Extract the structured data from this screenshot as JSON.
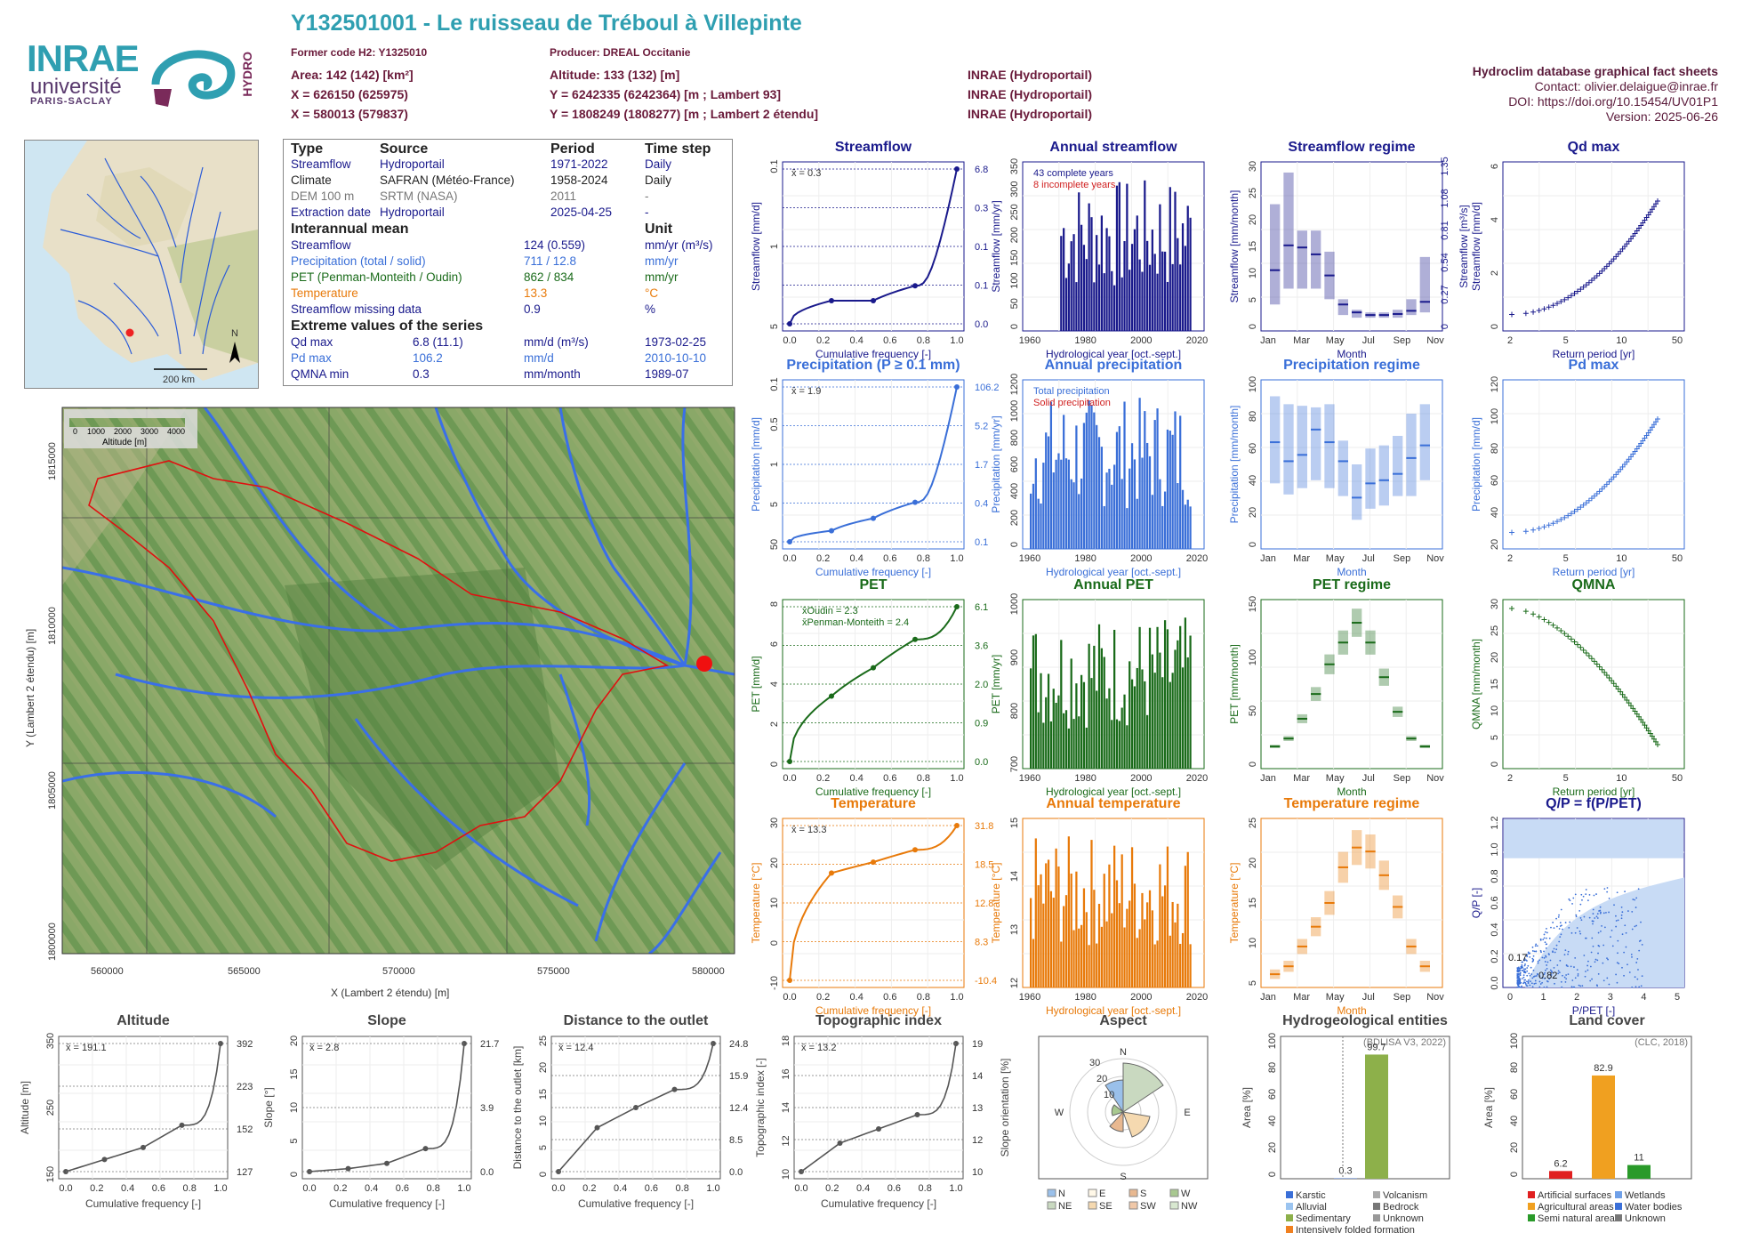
{
  "header": {
    "title": "Y132501001 - Le ruisseau de Tréboul à Villepinte",
    "former_code": "Former code H2: Y1325010",
    "producer": "Producer: DREAL Occitanie",
    "area": "Area: 142 (142) [km²]",
    "altitude": "Altitude: 133 (132) [m]",
    "x93": "X = 626150 (625975)",
    "y93": "Y = 6242335 (6242364) [m ; Lambert 93]",
    "x2": "X = 580013 (579837)",
    "y2": "Y = 1808249 (1808277) [m ; Lambert 2 étendu]",
    "src1": "INRAE (Hydroportail)",
    "src2": "INRAE (Hydroportail)",
    "src3": "INRAE (Hydroportail)",
    "right1": "Hydroclim database graphical fact sheets",
    "right2": "Contact: olivier.delaigue@inrae.fr",
    "right3": "DOI: https://doi.org/10.15454/UV01P1",
    "right4": "Version: 2025-06-26",
    "logo1": "INRAE",
    "logo2": "université",
    "logo3": "PARIS-SACLAY",
    "logo4": "HYDRO"
  },
  "overview_map": {
    "scale_label": "200 km",
    "north": "N"
  },
  "info": {
    "h_type": "Type",
    "h_source": "Source",
    "h_period": "Period",
    "h_step": "Time step",
    "rows": [
      [
        "Streamflow",
        "Hydroportail",
        "1971-2022",
        "Daily"
      ],
      [
        "Climate",
        "SAFRAN (Météo-France)",
        "1958-2024",
        "Daily"
      ],
      [
        "DEM 100 m",
        "SRTM (NASA)",
        "2011",
        "-"
      ],
      [
        "Extraction date",
        "Hydroportail",
        "2025-04-25",
        "-"
      ]
    ],
    "h_mean": "Interannual mean",
    "h_unit": "Unit",
    "means": [
      [
        "Streamflow",
        "124 (0.559)",
        "mm/yr (m³/s)"
      ],
      [
        "Precipitation (total / solid)",
        "711 / 12.8",
        "mm/yr"
      ],
      [
        "PET (Penman-Monteith / Oudin)",
        "862 / 834",
        "mm/yr"
      ],
      [
        "Temperature",
        "13.3",
        "°C"
      ],
      [
        "Streamflow missing data",
        "0.9",
        "%"
      ]
    ],
    "h_extreme": "Extreme values of the series",
    "extremes": [
      [
        "Qd max",
        "6.8 (11.1)",
        "mm/d (m³/s)",
        "1973-02-25"
      ],
      [
        "Pd max",
        "106.2",
        "mm/d",
        "2010-10-10"
      ],
      [
        "QMNA min",
        "0.3",
        "mm/month",
        "1989-07"
      ]
    ]
  },
  "basin_map": {
    "legend_title": "Altitude [m]",
    "legend_ticks": [
      "0",
      "1000",
      "2000",
      "3000",
      "4000"
    ],
    "xlabel": "X (Lambert 2 étendu) [m]",
    "ylabel": "Y (Lambert 2 étendu) [m]",
    "xticks": [
      "560000",
      "565000",
      "570000",
      "575000",
      "580000"
    ],
    "yticks": [
      "1815000",
      "1810000",
      "1805000",
      "1800000"
    ]
  },
  "colors": {
    "blue": "#1a1a8c",
    "lightblue": "#3a6fd8",
    "green": "#1a6b1a",
    "orange": "#e87a0a",
    "teal": "#2f9fb1",
    "gray": "#555555"
  },
  "chart_data": [
    {
      "id": "streamflow",
      "type": "line",
      "title": "Streamflow",
      "xlabel": "Cumulative frequency [-]",
      "ylabel": "Streamflow [mm/d]",
      "mean": "x̄ = 0.3",
      "right_labels": [
        "6.8",
        "0.3",
        "0.1",
        "0.1",
        "0.0"
      ],
      "left_ticks": [
        "5",
        "1",
        "0.1"
      ],
      "x": [
        0,
        0.25,
        0.5,
        0.75,
        1
      ],
      "y": [
        0.0,
        0.1,
        0.1,
        0.3,
        6.8
      ]
    },
    {
      "id": "annual_streamflow",
      "type": "bar",
      "title": "Annual streamflow",
      "xlabel": "Hydrological year [oct.-sept.]",
      "ylabel": "Streamflow [mm/yr]",
      "yticks": [
        "0",
        "50",
        "100",
        "150",
        "200",
        "250",
        "300",
        "350"
      ],
      "xticks": [
        "1960",
        "1980",
        "2000",
        "2020"
      ],
      "legend": [
        "43 complete years",
        "8 incomplete years"
      ]
    },
    {
      "id": "streamflow_regime",
      "type": "bar",
      "title": "Streamflow regime",
      "xlabel": "Month",
      "ylabel": "Streamflow [mm/month]",
      "yticks": [
        "0",
        "5",
        "10",
        "15",
        "20",
        "25",
        "30"
      ],
      "right_ticks": [
        "0",
        "0.27",
        "0.54",
        "0.81",
        "1.08",
        "1.35"
      ],
      "right_label": "Streamflow [m³/s]",
      "xticks": [
        "Jan",
        "Mar",
        "May",
        "Jul",
        "Sep",
        "Nov"
      ],
      "median": [
        10.5,
        15.2,
        14.8,
        13.5,
        9.5,
        4,
        2.5,
        2,
        2,
        2.2,
        2.8,
        4.5
      ],
      "low": [
        4,
        7,
        7,
        7,
        5,
        2,
        1.5,
        1.5,
        1.5,
        1.5,
        2,
        2.5
      ],
      "high": [
        23,
        29,
        18,
        18,
        14,
        5,
        3,
        2.5,
        2.5,
        3,
        5,
        13
      ]
    },
    {
      "id": "qd_max",
      "type": "scatter",
      "title": "Qd max",
      "xlabel": "Return period [yr]",
      "ylabel": "Streamflow [mm/d]",
      "yticks": [
        "0",
        "2",
        "4",
        "6"
      ],
      "xticks": [
        "2",
        "5",
        "10",
        "50"
      ]
    },
    {
      "id": "precipitation",
      "type": "line",
      "title": "Precipitation (P ≥ 0.1 mm)",
      "xlabel": "Cumulative frequency [-]",
      "ylabel": "Precipitation [mm/d]",
      "mean": "x̄ = 1.9",
      "right_labels": [
        "106.2",
        "5.2",
        "1.7",
        "0.4",
        "0.1"
      ],
      "left_ticks": [
        "50",
        "5",
        "1",
        "0.5",
        "0.1"
      ],
      "x": [
        0,
        0.25,
        0.5,
        0.75,
        1
      ],
      "y": [
        0.1,
        0.4,
        1.7,
        5.2,
        106.2
      ]
    },
    {
      "id": "annual_precipitation",
      "type": "bar",
      "title": "Annual precipitation",
      "xlabel": "Hydrological year [oct.-sept.]",
      "ylabel": "Precipitation [mm/yr]",
      "yticks": [
        "0",
        "200",
        "400",
        "600",
        "800",
        "1000",
        "1200"
      ],
      "xticks": [
        "1960",
        "1980",
        "2000",
        "2020"
      ],
      "legend": [
        "Total precipitation",
        "Solid precipitation"
      ]
    },
    {
      "id": "precipitation_regime",
      "type": "bar",
      "title": "Precipitation regime",
      "xlabel": "Month",
      "ylabel": "Precipitation [mm/month]",
      "yticks": [
        "0",
        "20",
        "40",
        "60",
        "80",
        "100"
      ],
      "xticks": [
        "Jan",
        "Mar",
        "May",
        "Jul",
        "Sep",
        "Nov"
      ],
      "median": [
        64,
        52,
        56,
        72,
        64,
        52,
        29,
        38,
        40,
        44,
        54,
        62
      ],
      "low": [
        38,
        31,
        35,
        40,
        35,
        30,
        15,
        22,
        24,
        30,
        30,
        40
      ],
      "high": [
        93,
        88,
        87,
        86,
        88,
        65,
        50,
        60,
        62,
        68,
        82,
        88
      ]
    },
    {
      "id": "pd_max",
      "type": "scatter",
      "title": "Pd max",
      "xlabel": "Return period [yr]",
      "ylabel": "Precipitation [mm/d]",
      "yticks": [
        "20",
        "40",
        "60",
        "80",
        "100",
        "120"
      ],
      "xticks": [
        "2",
        "5",
        "10",
        "50"
      ]
    },
    {
      "id": "pet",
      "type": "line",
      "title": "PET",
      "xlabel": "Cumulative frequency [-]",
      "ylabel": "PET [mm/d]",
      "legend": [
        "x̄Oudin = 2.3",
        "x̄Penman-Monteith = 2.4"
      ],
      "right_labels": [
        "6.1",
        "3.6",
        "2.0",
        "0.9",
        "0.0"
      ],
      "left_ticks": [
        "0",
        "2",
        "4",
        "6",
        "8"
      ],
      "x": [
        0,
        0.25,
        0.5,
        0.75,
        1
      ],
      "y": [
        0.0,
        0.9,
        2.0,
        3.6,
        6.1
      ]
    },
    {
      "id": "annual_pet",
      "type": "bar",
      "title": "Annual PET",
      "xlabel": "Hydrological year [oct.-sept.]",
      "ylabel": "PET [mm/yr]",
      "yticks": [
        "700",
        "800",
        "900",
        "1000"
      ],
      "xticks": [
        "1960",
        "1980",
        "2000",
        "2020"
      ]
    },
    {
      "id": "pet_regime",
      "type": "bar",
      "title": "PET regime",
      "xlabel": "Month",
      "ylabel": "PET [mm/month]",
      "yticks": [
        "0",
        "50",
        "100",
        "150"
      ],
      "xticks": [
        "Jan",
        "Mar",
        "May",
        "Jul",
        "Sep",
        "Nov"
      ],
      "median": [
        17,
        25,
        45,
        70,
        100,
        122,
        142,
        122,
        87,
        52,
        25,
        17
      ]
    },
    {
      "id": "qmna",
      "type": "scatter",
      "title": "QMNA",
      "xlabel": "Return period [yr]",
      "ylabel": "QMNA [mm/month]",
      "yticks": [
        "0",
        "5",
        "10",
        "15",
        "20",
        "25",
        "30"
      ],
      "xticks": [
        "2",
        "5",
        "10",
        "50"
      ]
    },
    {
      "id": "temperature",
      "type": "line",
      "title": "Temperature",
      "xlabel": "Cumulative frequency [-]",
      "ylabel": "Temperature [°C]",
      "mean": "x̄ = 13.3",
      "right_labels": [
        "31.8",
        "18.5",
        "12.8",
        "8.3",
        "-10.4"
      ],
      "left_ticks": [
        "-10",
        "0",
        "10",
        "20",
        "30"
      ],
      "x": [
        0,
        0.25,
        0.5,
        0.75,
        1
      ],
      "y": [
        -10.4,
        8.3,
        12.8,
        18.5,
        31.8
      ]
    },
    {
      "id": "annual_temperature",
      "type": "bar",
      "title": "Annual temperature",
      "xlabel": "Hydrological year [oct.-sept.]",
      "ylabel": "Temperature [°C]",
      "yticks": [
        "12",
        "13",
        "14",
        "15"
      ],
      "xticks": [
        "1960",
        "1980",
        "2000",
        "2020"
      ]
    },
    {
      "id": "temperature_regime",
      "type": "bar",
      "title": "Temperature regime",
      "xlabel": "Month",
      "ylabel": "Temperature [°C]",
      "yticks": [
        "5",
        "10",
        "15",
        "20",
        "25"
      ],
      "xticks": [
        "Jan",
        "Mar",
        "May",
        "Jul",
        "Sep",
        "Nov"
      ],
      "median": [
        6,
        7,
        9.5,
        12,
        15,
        19.5,
        22,
        21.5,
        18.5,
        14.5,
        9.5,
        7
      ]
    },
    {
      "id": "qp",
      "type": "scatter",
      "title": "Q/P = f(P/PET)",
      "xlabel": "P/PET [-]",
      "ylabel": "Q/P [-]",
      "xticks": [
        "0",
        "1",
        "2",
        "3",
        "4",
        "5"
      ],
      "yticks": [
        "0.0",
        "0.2",
        "0.4",
        "0.6",
        "0.8",
        "1.0",
        "1.2"
      ],
      "annot": [
        "0.17",
        "0.82"
      ]
    },
    {
      "id": "altitude",
      "type": "line",
      "title": "Altitude",
      "xlabel": "Cumulative frequency [-]",
      "ylabel": "Altitude [m]",
      "mean": "x̄ = 191.1",
      "right_labels": [
        "392",
        "223",
        "152",
        "127"
      ],
      "left_ticks": [
        "150",
        "250",
        "350"
      ],
      "x": [
        0,
        0.25,
        0.5,
        0.75,
        1
      ],
      "y": [
        127,
        152,
        177,
        223,
        392
      ]
    },
    {
      "id": "slope",
      "type": "line",
      "title": "Slope",
      "xlabel": "Cumulative frequency [-]",
      "ylabel": "Slope [°]",
      "mean": "x̄ = 2.8",
      "right_labels": [
        "21.7",
        "3.9",
        "0.0"
      ],
      "left_ticks": [
        "0",
        "5",
        "10",
        "15",
        "20"
      ],
      "x": [
        0,
        0.25,
        0.5,
        0.75,
        1
      ],
      "y": [
        0.0,
        0.5,
        1.4,
        3.9,
        21.7
      ]
    },
    {
      "id": "distance",
      "type": "line",
      "title": "Distance to the outlet",
      "xlabel": "Cumulative frequency [-]",
      "ylabel": "Distance to the outlet [km]",
      "mean": "x̄ = 12.4",
      "right_labels": [
        "24.8",
        "15.9",
        "12.4",
        "8.5",
        "0.0"
      ],
      "left_ticks": [
        "0",
        "5",
        "10",
        "15",
        "20",
        "25"
      ],
      "x": [
        0,
        0.25,
        0.5,
        0.75,
        1
      ],
      "y": [
        0.0,
        8.5,
        12.4,
        15.9,
        24.8
      ]
    },
    {
      "id": "topo",
      "type": "line",
      "title": "Topographic index",
      "xlabel": "Cumulative frequency [-]",
      "ylabel": "Topographic index [-]",
      "mean": "x̄ = 13.2",
      "right_labels": [
        "19",
        "14",
        "13",
        "12",
        "10"
      ],
      "left_ticks": [
        "10",
        "12",
        "14",
        "16",
        "18"
      ],
      "x": [
        0,
        0.25,
        0.5,
        0.75,
        1
      ],
      "y": [
        10,
        12,
        13,
        14,
        19
      ]
    },
    {
      "id": "aspect",
      "type": "pie",
      "title": "Aspect",
      "ylabel": "Slope orientation [%]",
      "directions": [
        "N",
        "E",
        "S",
        "W"
      ],
      "ring_labels": [
        "10",
        "20",
        "30"
      ],
      "legend": [
        "N",
        "E",
        "S",
        "W",
        "NE",
        "SE",
        "SW",
        "NW"
      ]
    },
    {
      "id": "hydrogeology",
      "type": "bar",
      "title": "Hydrogeological entities",
      "ylabel": "Area [%]",
      "note": "(BDLISA V3, 2022)",
      "yticks": [
        "0",
        "20",
        "40",
        "60",
        "80",
        "100"
      ],
      "values": [
        {
          "label": "0.3",
          "v": 0.3
        },
        {
          "label": "99.7",
          "v": 99.7
        }
      ],
      "legend": [
        "Karstic",
        "Volcanism",
        "Alluvial",
        "Bedrock",
        "Sedimentary",
        "Unknown",
        "Intensively folded formation"
      ]
    },
    {
      "id": "landcover",
      "type": "bar",
      "title": "Land cover",
      "ylabel": "Area [%]",
      "note": "(CLC, 2018)",
      "yticks": [
        "0",
        "20",
        "40",
        "60",
        "80",
        "100"
      ],
      "values": [
        {
          "label": "6.2",
          "v": 6.2
        },
        {
          "label": "82.9",
          "v": 82.9
        },
        {
          "label": "11",
          "v": 11
        }
      ],
      "legend": [
        "Artificial surfaces",
        "Wetlands",
        "Agricultural areas",
        "Water bodies",
        "Semi natural areas",
        "Unknown"
      ]
    }
  ]
}
